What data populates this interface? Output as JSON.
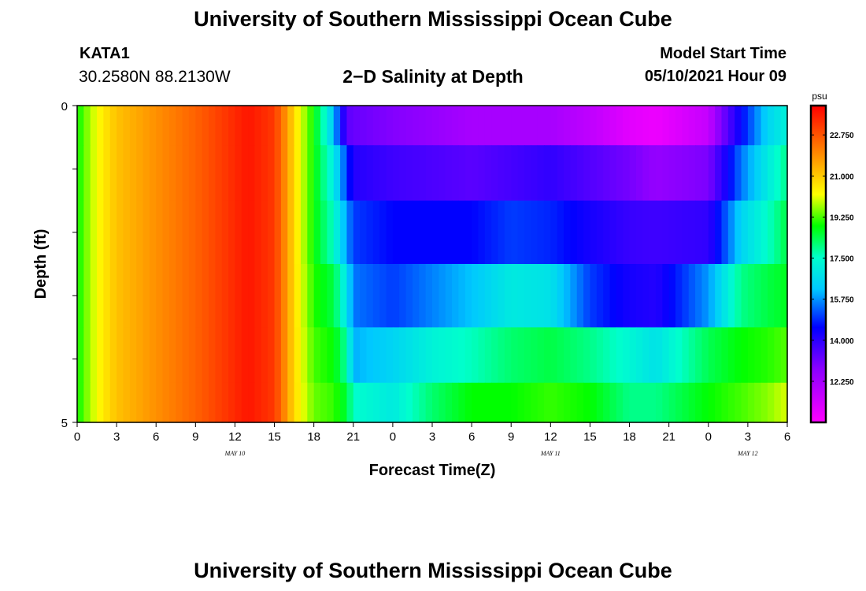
{
  "header": {
    "title_top": "University of Southern Mississippi Ocean Cube",
    "title_bottom": "University of Southern Mississippi Ocean Cube",
    "station_id": "KATA1",
    "station_coords": "30.2580N  88.2130W",
    "plot_title": "2−D Salinity at Depth",
    "run_label": "Model Start Time",
    "run_time": "05/10/2021 Hour 09"
  },
  "chart_data": {
    "type": "heatmap",
    "xlabel": "Forecast Time(Z)",
    "ylabel": "Depth (ft)",
    "x_tick_labels": [
      "0",
      "3",
      "6",
      "9",
      "12",
      "15",
      "18",
      "21",
      "0",
      "3",
      "6",
      "9",
      "12",
      "15",
      "18",
      "21",
      "0",
      "3",
      "6"
    ],
    "x_range_hours": [
      0,
      54
    ],
    "day_labels": [
      {
        "text": "MAY  10",
        "hour": 12
      },
      {
        "text": "MAY  11",
        "hour": 36
      },
      {
        "text": "MAY  12",
        "hour": 51
      }
    ],
    "y_tick_labels": [
      {
        "depth": 0,
        "label": "0"
      },
      {
        "depth": 5,
        "label": "5"
      }
    ],
    "y_range_ft": [
      0,
      5
    ],
    "depth_layers": [
      0.25,
      1,
      2,
      3,
      4,
      4.75
    ],
    "colorbar": {
      "unit": "psu",
      "ticks": [
        12.25,
        14.0,
        15.75,
        17.5,
        19.25,
        21.0,
        22.75
      ],
      "tick_labels": [
        "12.250",
        "14.000",
        "15.750",
        "17.500",
        "19.250",
        "21.000",
        "22.750"
      ],
      "range": [
        10.5,
        24.0
      ]
    },
    "salinity_keyframes": [
      {
        "hour": 0,
        "values": [
          19.0,
          19.0,
          19.0,
          19.0,
          19.0,
          19.0
        ]
      },
      {
        "hour": 1.5,
        "values": [
          20.5,
          20.5,
          20.5,
          20.5,
          20.5,
          20.5
        ]
      },
      {
        "hour": 3,
        "values": [
          21.3,
          21.3,
          21.3,
          21.3,
          21.3,
          21.3
        ]
      },
      {
        "hour": 9,
        "values": [
          22.6,
          22.6,
          22.6,
          22.6,
          22.6,
          22.6
        ]
      },
      {
        "hour": 13,
        "values": [
          23.7,
          23.7,
          23.7,
          23.7,
          23.7,
          23.7
        ]
      },
      {
        "hour": 15,
        "values": [
          23.2,
          23.2,
          23.2,
          23.2,
          23.2,
          23.2
        ]
      },
      {
        "hour": 16.5,
        "values": [
          21.0,
          21.0,
          21.0,
          21.0,
          21.0,
          21.0
        ]
      },
      {
        "hour": 18,
        "values": [
          19.0,
          19.0,
          19.0,
          19.2,
          19.4,
          19.6
        ]
      },
      {
        "hour": 19.5,
        "values": [
          16.2,
          17.0,
          17.5,
          18.5,
          19.0,
          19.3
        ]
      },
      {
        "hour": 20.5,
        "values": [
          13.2,
          15.0,
          15.8,
          16.8,
          17.8,
          18.6
        ]
      },
      {
        "hour": 21,
        "values": [
          13.0,
          14.0,
          15.0,
          15.5,
          16.0,
          17.5
        ]
      },
      {
        "hour": 24,
        "values": [
          12.6,
          13.6,
          14.5,
          15.0,
          16.5,
          17.0
        ]
      },
      {
        "hour": 27,
        "values": [
          12.3,
          13.4,
          14.5,
          15.6,
          17.2,
          18.2
        ]
      },
      {
        "hour": 30,
        "values": [
          12.0,
          13.2,
          14.5,
          16.2,
          17.6,
          19.0
        ]
      },
      {
        "hour": 33,
        "values": [
          12.0,
          13.5,
          15.0,
          17.0,
          18.2,
          19.0
        ]
      },
      {
        "hour": 36,
        "values": [
          12.0,
          13.8,
          14.8,
          16.8,
          18.5,
          19.3
        ]
      },
      {
        "hour": 39,
        "values": [
          11.6,
          13.3,
          14.2,
          15.0,
          18.0,
          19.0
        ]
      },
      {
        "hour": 42,
        "values": [
          11.0,
          12.8,
          13.7,
          14.2,
          17.3,
          18.0
        ]
      },
      {
        "hour": 44,
        "values": [
          10.8,
          12.3,
          13.6,
          14.0,
          16.8,
          18.0
        ]
      },
      {
        "hour": 48,
        "values": [
          11.5,
          12.7,
          13.8,
          15.8,
          18.4,
          19.0
        ]
      },
      {
        "hour": 50.5,
        "values": [
          14.5,
          15.5,
          16.5,
          18.0,
          19.0,
          19.4
        ]
      },
      {
        "hour": 52.5,
        "values": [
          16.5,
          17.0,
          17.5,
          18.5,
          19.2,
          19.8
        ]
      },
      {
        "hour": 54,
        "values": [
          17.2,
          18.0,
          18.5,
          18.8,
          19.5,
          20.3
        ]
      }
    ]
  }
}
